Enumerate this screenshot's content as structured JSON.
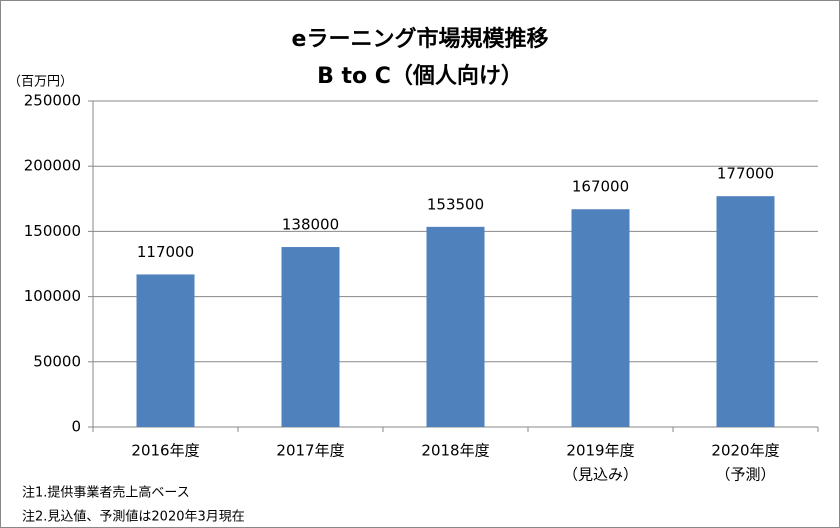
{
  "chart_data": {
    "type": "bar",
    "title": "eラーニング市場規模推移",
    "subtitle": "B to C（個人向け）",
    "y_unit": "（百万円）",
    "categories": [
      [
        "2016年度"
      ],
      [
        "2017年度"
      ],
      [
        "2018年度"
      ],
      [
        "2019年度",
        "（見込み）"
      ],
      [
        "2020年度",
        "（予測）"
      ]
    ],
    "values": [
      117000,
      138000,
      153500,
      167000,
      177000
    ],
    "color": "#4f81bd",
    "ylim": [
      0,
      250000
    ],
    "yticks": [
      0,
      50000,
      100000,
      150000,
      200000,
      250000
    ],
    "grid": true,
    "notes": [
      "注1.提供事業者売上高ベース",
      "注2.見込値、予測値は2020年3月現在"
    ]
  }
}
